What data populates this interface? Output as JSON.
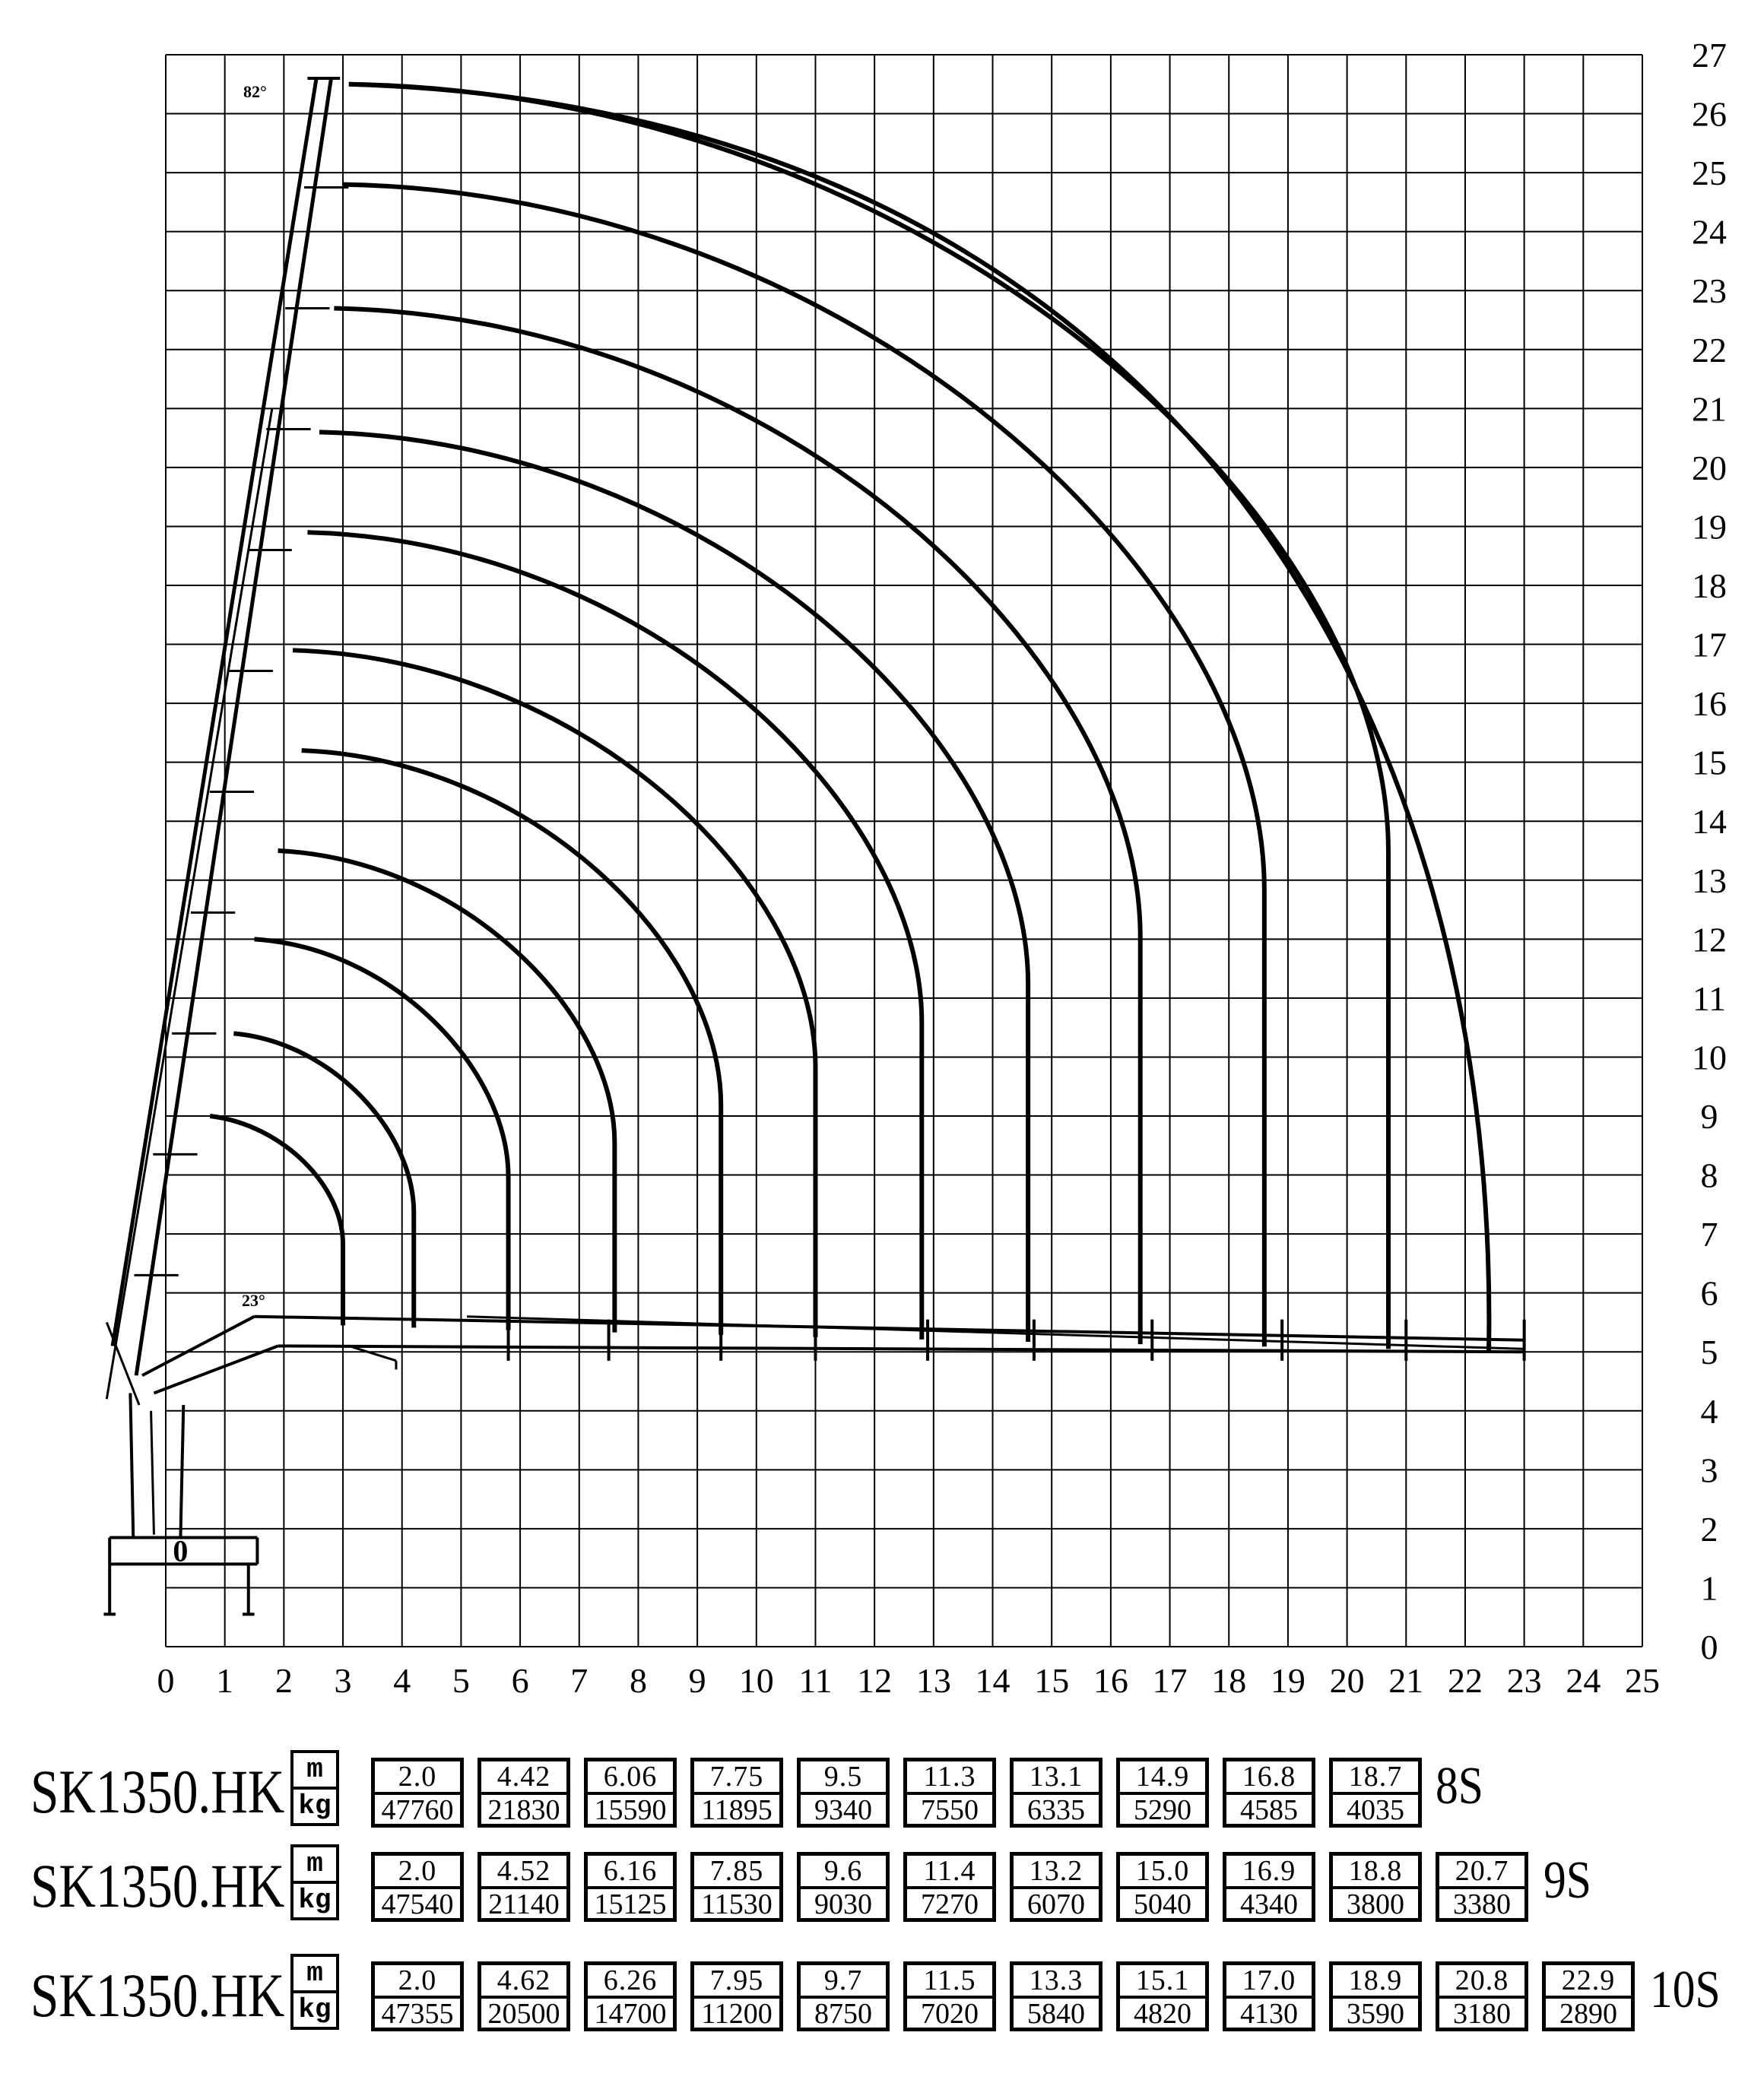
{
  "chart_data": {
    "type": "load-range diagram",
    "x_ticks": [
      "0",
      "1",
      "2",
      "3",
      "4",
      "5",
      "6",
      "7",
      "8",
      "9",
      "10",
      "11",
      "12",
      "13",
      "14",
      "15",
      "16",
      "17",
      "18",
      "19",
      "20",
      "21",
      "22",
      "23",
      "24",
      "25"
    ],
    "y_ticks": [
      "0",
      "1",
      "2",
      "3",
      "4",
      "5",
      "6",
      "7",
      "8",
      "9",
      "10",
      "11",
      "12",
      "13",
      "14",
      "15",
      "16",
      "17",
      "18",
      "19",
      "20",
      "21",
      "22",
      "23",
      "24",
      "25",
      "26",
      "27"
    ],
    "xlim": [
      0,
      25
    ],
    "ylim": [
      0,
      27
    ],
    "grid": true,
    "angle_labels": [
      "82°",
      "23°"
    ],
    "working_curves_reach_m": [
      3.0,
      4.2,
      5.8,
      7.6,
      9.4,
      11.0,
      12.8,
      14.6,
      16.5,
      18.6,
      20.7,
      22.4
    ],
    "working_curves_peak_height_m": [
      9.0,
      10.4,
      12.0,
      13.5,
      15.2,
      16.9,
      18.9,
      20.6,
      22.7,
      24.8,
      26.5,
      26.5
    ]
  },
  "load_table": [
    {
      "model": "SK1350.HK",
      "unit_top": "m",
      "unit_bottom": "kg",
      "suffix": "8S",
      "cells": [
        {
          "r": "2.0",
          "w": "47760"
        },
        {
          "r": "4.42",
          "w": "21830"
        },
        {
          "r": "6.06",
          "w": "15590"
        },
        {
          "r": "7.75",
          "w": "11895"
        },
        {
          "r": "9.5",
          "w": "9340"
        },
        {
          "r": "11.3",
          "w": "7550"
        },
        {
          "r": "13.1",
          "w": "6335"
        },
        {
          "r": "14.9",
          "w": "5290"
        },
        {
          "r": "16.8",
          "w": "4585"
        },
        {
          "r": "18.7",
          "w": "4035"
        }
      ]
    },
    {
      "model": "SK1350.HK",
      "unit_top": "m",
      "unit_bottom": "kg",
      "suffix": "9S",
      "cells": [
        {
          "r": "2.0",
          "w": "47540"
        },
        {
          "r": "4.52",
          "w": "21140"
        },
        {
          "r": "6.16",
          "w": "15125"
        },
        {
          "r": "7.85",
          "w": "11530"
        },
        {
          "r": "9.6",
          "w": "9030"
        },
        {
          "r": "11.4",
          "w": "7270"
        },
        {
          "r": "13.2",
          "w": "6070"
        },
        {
          "r": "15.0",
          "w": "5040"
        },
        {
          "r": "16.9",
          "w": "4340"
        },
        {
          "r": "18.8",
          "w": "3800"
        },
        {
          "r": "20.7",
          "w": "3380"
        }
      ]
    },
    {
      "model": "SK1350.HK",
      "unit_top": "m",
      "unit_bottom": "kg",
      "suffix": "10S",
      "cells": [
        {
          "r": "2.0",
          "w": "47355"
        },
        {
          "r": "4.62",
          "w": "20500"
        },
        {
          "r": "6.26",
          "w": "14700"
        },
        {
          "r": "7.95",
          "w": "11200"
        },
        {
          "r": "9.7",
          "w": "8750"
        },
        {
          "r": "11.5",
          "w": "7020"
        },
        {
          "r": "13.3",
          "w": "5840"
        },
        {
          "r": "15.1",
          "w": "4820"
        },
        {
          "r": "17.0",
          "w": "4130"
        },
        {
          "r": "18.9",
          "w": "3590"
        },
        {
          "r": "20.8",
          "w": "3180"
        },
        {
          "r": "22.9",
          "w": "2890"
        }
      ]
    }
  ]
}
